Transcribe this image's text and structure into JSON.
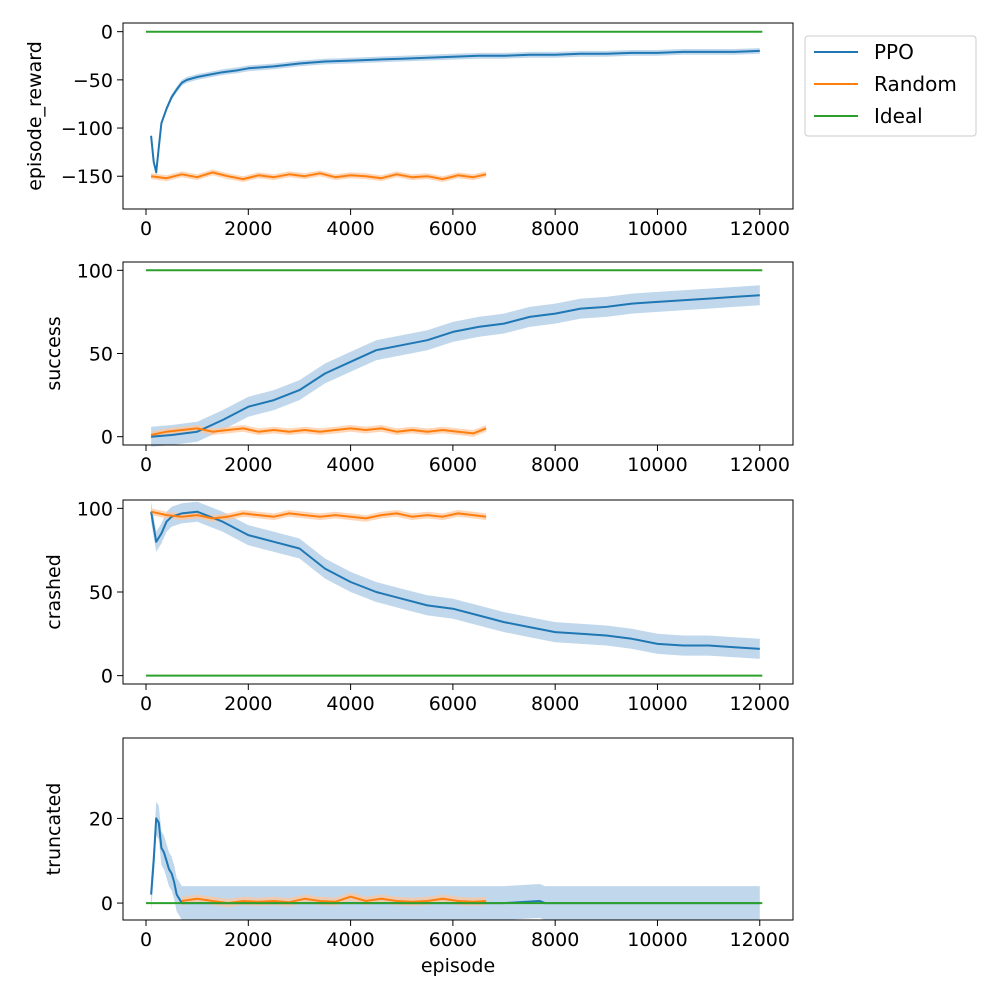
{
  "colors": {
    "ppo": "#1f77b4",
    "random": "#ff7f0e",
    "ideal": "#2ca02c",
    "ppo_band": "#a6c8e4",
    "random_band": "#ffc59a"
  },
  "legend": {
    "placement": "upper-right-outside",
    "entries": [
      {
        "name": "PPO",
        "color": "#1f77b4"
      },
      {
        "name": "Random",
        "color": "#ff7f0e"
      },
      {
        "name": "Ideal",
        "color": "#2ca02c"
      }
    ]
  },
  "chart_data": [
    {
      "type": "line",
      "ylabel": "episode_reward",
      "xlabel": "",
      "xlim": [
        -450,
        12650
      ],
      "ylim": [
        -184,
        9
      ],
      "xticks": [
        0,
        2000,
        4000,
        6000,
        8000,
        10000,
        12000
      ],
      "xtick_labels": [
        "0",
        "2000",
        "4000",
        "6000",
        "8000",
        "10000",
        "12000"
      ],
      "yticks": [
        0,
        -50,
        -100,
        -150
      ],
      "ytick_labels": [
        "0",
        "−50",
        "−100",
        "−150"
      ],
      "series": [
        {
          "name": "PPO",
          "color": "#1f77b4",
          "band": 3,
          "x": [
            100,
            150,
            200,
            250,
            300,
            400,
            500,
            600,
            700,
            800,
            1000,
            1200,
            1500,
            1800,
            2000,
            2500,
            3000,
            3500,
            4000,
            4500,
            5000,
            5500,
            6000,
            6500,
            7000,
            7500,
            8000,
            8500,
            9000,
            9500,
            10000,
            10500,
            11000,
            11500,
            12000
          ],
          "y": [
            -108,
            -135,
            -146,
            -120,
            -95,
            -80,
            -68,
            -60,
            -53,
            -50,
            -47,
            -45,
            -42,
            -40,
            -38,
            -36,
            -33,
            -31,
            -30,
            -29,
            -28,
            -27,
            -26,
            -25,
            -25,
            -24,
            -24,
            -23,
            -23,
            -22,
            -22,
            -21,
            -21,
            -21,
            -20
          ]
        },
        {
          "name": "Random",
          "color": "#ff7f0e",
          "band": 3,
          "x": [
            100,
            400,
            700,
            1000,
            1300,
            1600,
            1900,
            2200,
            2500,
            2800,
            3100,
            3400,
            3700,
            4000,
            4300,
            4600,
            4900,
            5200,
            5500,
            5800,
            6100,
            6400,
            6650
          ],
          "y": [
            -150,
            -152,
            -148,
            -151,
            -146,
            -150,
            -153,
            -149,
            -151,
            -148,
            -150,
            -147,
            -151,
            -149,
            -150,
            -152,
            -148,
            -151,
            -150,
            -153,
            -149,
            -151,
            -148
          ]
        },
        {
          "name": "Ideal",
          "color": "#2ca02c",
          "band": 0,
          "x": [
            0,
            12050
          ],
          "y": [
            0,
            0
          ]
        }
      ]
    },
    {
      "type": "line",
      "ylabel": "success",
      "xlabel": "",
      "xlim": [
        -450,
        12650
      ],
      "ylim": [
        -5,
        105
      ],
      "xticks": [
        0,
        2000,
        4000,
        6000,
        8000,
        10000,
        12000
      ],
      "xtick_labels": [
        "0",
        "2000",
        "4000",
        "6000",
        "8000",
        "10000",
        "12000"
      ],
      "yticks": [
        0,
        50,
        100
      ],
      "ytick_labels": [
        "0",
        "50",
        "100"
      ],
      "series": [
        {
          "name": "PPO",
          "color": "#1f77b4",
          "band": 6,
          "x": [
            100,
            500,
            1000,
            1500,
            2000,
            2500,
            3000,
            3500,
            4000,
            4500,
            5000,
            5500,
            6000,
            6500,
            7000,
            7500,
            8000,
            8500,
            9000,
            9500,
            10000,
            10500,
            11000,
            11500,
            12000
          ],
          "y": [
            0,
            1,
            3,
            10,
            18,
            22,
            28,
            38,
            45,
            52,
            55,
            58,
            63,
            66,
            68,
            72,
            74,
            77,
            78,
            80,
            81,
            82,
            83,
            84,
            85
          ]
        },
        {
          "name": "Random",
          "color": "#ff7f0e",
          "band": 2,
          "x": [
            100,
            400,
            700,
            1000,
            1300,
            1600,
            1900,
            2200,
            2500,
            2800,
            3100,
            3400,
            3700,
            4000,
            4300,
            4600,
            4900,
            5200,
            5500,
            5800,
            6100,
            6400,
            6650
          ],
          "y": [
            1,
            3,
            4,
            5,
            3,
            4,
            5,
            3,
            4,
            3,
            4,
            3,
            4,
            5,
            4,
            5,
            3,
            4,
            3,
            4,
            3,
            2,
            5
          ]
        },
        {
          "name": "Ideal",
          "color": "#2ca02c",
          "band": 0,
          "x": [
            0,
            12050
          ],
          "y": [
            100,
            100
          ]
        }
      ]
    },
    {
      "type": "line",
      "ylabel": "crashed",
      "xlabel": "",
      "xlim": [
        -450,
        12650
      ],
      "ylim": [
        -5,
        105
      ],
      "xticks": [
        0,
        2000,
        4000,
        6000,
        8000,
        10000,
        12000
      ],
      "xtick_labels": [
        "0",
        "2000",
        "4000",
        "6000",
        "8000",
        "10000",
        "12000"
      ],
      "yticks": [
        0,
        50,
        100
      ],
      "ytick_labels": [
        "0",
        "50",
        "100"
      ],
      "series": [
        {
          "name": "PPO",
          "color": "#1f77b4",
          "band": 6,
          "x": [
            100,
            200,
            300,
            400,
            500,
            700,
            1000,
            1500,
            2000,
            2500,
            3000,
            3500,
            4000,
            4500,
            5000,
            5500,
            6000,
            6500,
            7000,
            7500,
            8000,
            8500,
            9000,
            9500,
            10000,
            10500,
            11000,
            11500,
            12000
          ],
          "y": [
            98,
            80,
            85,
            92,
            95,
            97,
            98,
            92,
            84,
            80,
            76,
            64,
            56,
            50,
            46,
            42,
            40,
            36,
            32,
            29,
            26,
            25,
            24,
            22,
            19,
            18,
            18,
            17,
            16
          ]
        },
        {
          "name": "Random",
          "color": "#ff7f0e",
          "band": 2,
          "x": [
            100,
            400,
            700,
            1000,
            1300,
            1600,
            1900,
            2200,
            2500,
            2800,
            3100,
            3400,
            3700,
            4000,
            4300,
            4600,
            4900,
            5200,
            5500,
            5800,
            6100,
            6400,
            6650
          ],
          "y": [
            98,
            96,
            95,
            96,
            94,
            95,
            97,
            96,
            95,
            97,
            96,
            95,
            96,
            95,
            94,
            96,
            97,
            95,
            96,
            95,
            97,
            96,
            95
          ]
        },
        {
          "name": "Ideal",
          "color": "#2ca02c",
          "band": 0,
          "x": [
            0,
            12050
          ],
          "y": [
            0,
            0
          ]
        }
      ]
    },
    {
      "type": "line",
      "ylabel": "truncated",
      "xlabel": "episode",
      "xlim": [
        -450,
        12650
      ],
      "ylim": [
        -4,
        39
      ],
      "xticks": [
        0,
        2000,
        4000,
        6000,
        8000,
        10000,
        12000
      ],
      "xtick_labels": [
        "0",
        "2000",
        "4000",
        "6000",
        "8000",
        "10000",
        "12000"
      ],
      "yticks": [
        0,
        20
      ],
      "ytick_labels": [
        "0",
        "20"
      ],
      "series": [
        {
          "name": "PPO",
          "color": "#1f77b4",
          "band": 4,
          "x": [
            100,
            150,
            200,
            250,
            300,
            350,
            400,
            450,
            500,
            550,
            600,
            650,
            700,
            800,
            1000,
            2000,
            3000,
            4000,
            5000,
            6000,
            7000,
            7700,
            7800,
            8000,
            9000,
            10000,
            11000,
            12000
          ],
          "y": [
            2,
            10,
            20,
            19,
            13,
            12,
            10,
            8,
            7,
            5,
            2,
            1,
            0,
            0,
            0,
            0,
            0,
            0,
            0,
            0,
            0,
            0.5,
            0,
            0,
            0,
            0,
            0,
            0
          ]
        },
        {
          "name": "Random",
          "color": "#ff7f0e",
          "band": 1,
          "x": [
            700,
            1000,
            1300,
            1600,
            1900,
            2200,
            2500,
            2800,
            3100,
            3400,
            3700,
            4000,
            4300,
            4600,
            4900,
            5200,
            5500,
            5800,
            6100,
            6400,
            6650
          ],
          "y": [
            0.5,
            1,
            0.5,
            0,
            0.5,
            0.3,
            0.5,
            0.2,
            1,
            0.5,
            0.3,
            1.5,
            0.5,
            1,
            0.5,
            0.3,
            0.5,
            1,
            0.5,
            0.3,
            0.5
          ]
        },
        {
          "name": "Ideal",
          "color": "#2ca02c",
          "band": 0,
          "x": [
            0,
            12050
          ],
          "y": [
            0,
            0
          ]
        }
      ]
    }
  ]
}
